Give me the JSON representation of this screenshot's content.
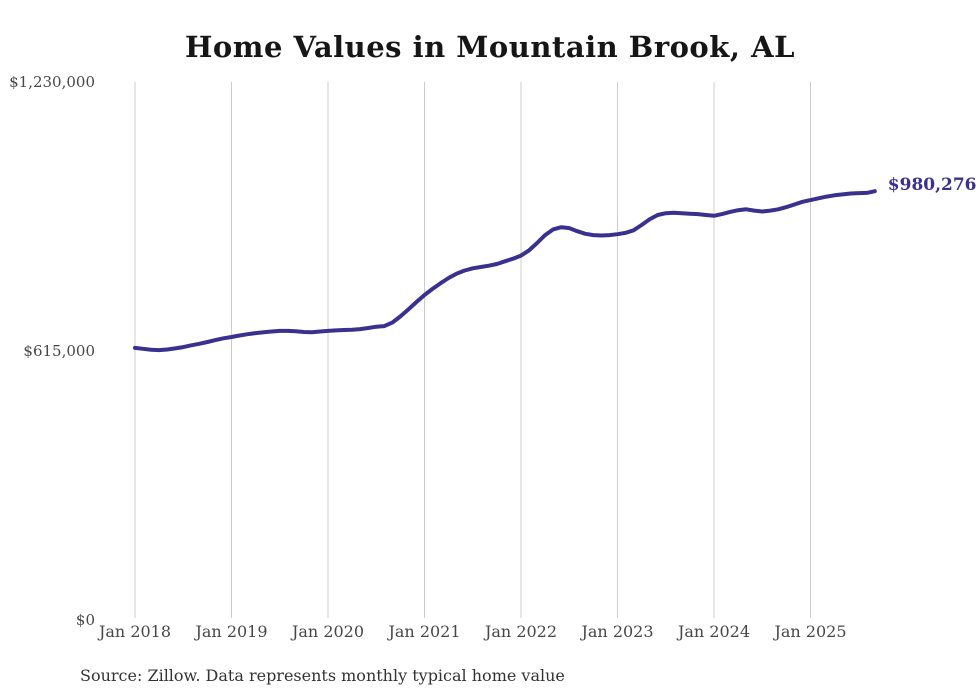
{
  "chart_data": {
    "type": "line",
    "title": "Home Values in Mountain Brook, AL",
    "source_note": "Source: Zillow. Data represents monthly typical home value",
    "series_name": "Monthly typical home value",
    "frequency": "monthly",
    "x_start": "Jan 2018",
    "x_end": "Sep 2025",
    "ylim": [
      0,
      1230000
    ],
    "grid": true,
    "grid_color": "#cccccc",
    "line_color": "#39318f",
    "last_value_label": "$980,276",
    "last_value": 980276,
    "y_ticks": [
      {
        "label": "$0",
        "value": 0
      },
      {
        "label": "$615,000",
        "value": 615000
      },
      {
        "label": "$1,230,000",
        "value": 1230000
      }
    ],
    "x_ticks": [
      {
        "label": "Jan 2018",
        "month_index": 0
      },
      {
        "label": "Jan 2019",
        "month_index": 12
      },
      {
        "label": "Jan 2020",
        "month_index": 24
      },
      {
        "label": "Jan 2021",
        "month_index": 36
      },
      {
        "label": "Jan 2022",
        "month_index": 48
      },
      {
        "label": "Jan 2023",
        "month_index": 60
      },
      {
        "label": "Jan 2024",
        "month_index": 72
      },
      {
        "label": "Jan 2025",
        "month_index": 84
      }
    ],
    "values": [
      622000,
      620000,
      618000,
      617000,
      618500,
      621000,
      624000,
      628000,
      631500,
      635500,
      640000,
      644000,
      647000,
      650500,
      653500,
      656000,
      658000,
      659500,
      661000,
      661000,
      660000,
      658500,
      658000,
      659500,
      661000,
      662000,
      663000,
      663500,
      665000,
      667500,
      670500,
      672000,
      680000,
      694000,
      710000,
      727000,
      743000,
      757000,
      770000,
      782000,
      792000,
      799000,
      804000,
      807000,
      810000,
      814000,
      820000,
      826000,
      833000,
      845000,
      862000,
      880000,
      893000,
      898000,
      896000,
      889000,
      883000,
      880000,
      879000,
      880000,
      882000,
      885000,
      891000,
      903000,
      916000,
      926000,
      930000,
      931000,
      930000,
      929000,
      928000,
      926000,
      924000,
      928000,
      933000,
      937000,
      939000,
      936000,
      934000,
      936000,
      939000,
      944000,
      950000,
      956000,
      960000,
      964000,
      968000,
      971000,
      973000,
      975000,
      976000,
      976500,
      980276
    ]
  }
}
